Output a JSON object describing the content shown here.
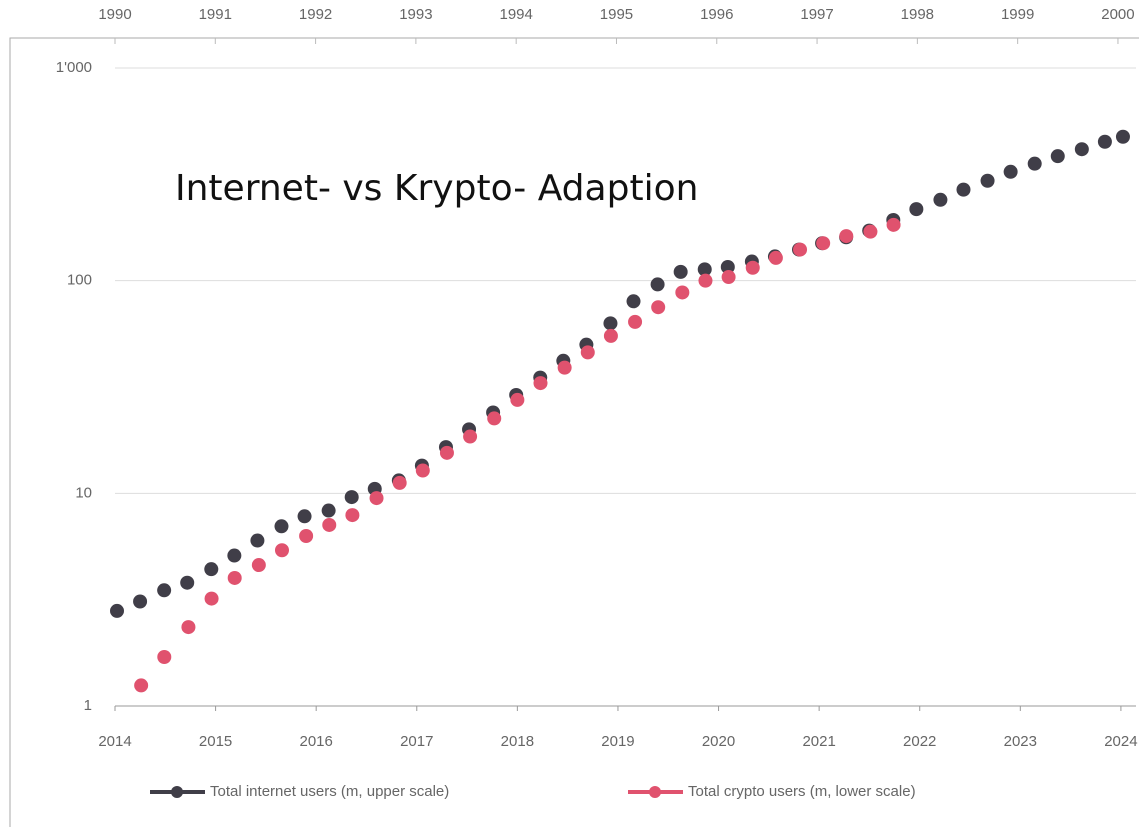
{
  "chart_data": {
    "type": "scatter",
    "title": "Internet- vs Krypto- Adaption",
    "log_y": true,
    "grid": true,
    "legend": "bottom",
    "ylim": [
      1,
      1000
    ],
    "yticks": [
      1,
      10,
      100,
      {
        "value": 1000,
        "label": "1'000"
      }
    ],
    "xlim": [
      2014,
      2024.15
    ],
    "xticks": [
      2014,
      2015,
      2016,
      2017,
      2018,
      2019,
      2020,
      2021,
      2022,
      2023,
      2024
    ],
    "x2lim": [
      1990,
      2000.18
    ],
    "x2ticks": [
      1990,
      1991,
      1992,
      1993,
      1994,
      1995,
      1996,
      1997,
      1998,
      1999,
      2000
    ],
    "series": [
      {
        "name": "Total internet users (m, upper scale)",
        "color": "#403e48",
        "axis": "x2",
        "x": [
          1990.02,
          1990.25,
          1990.49,
          1990.72,
          1990.96,
          1991.19,
          1991.42,
          1991.66,
          1991.89,
          1992.13,
          1992.36,
          1992.59,
          1992.83,
          1993.06,
          1993.3,
          1993.53,
          1993.77,
          1994.0,
          1994.24,
          1994.47,
          1994.7,
          1994.94,
          1995.17,
          1995.41,
          1995.64,
          1995.88,
          1996.11,
          1996.35,
          1996.58,
          1996.82,
          1997.05,
          1997.29,
          1997.52,
          1997.76,
          1997.99,
          1998.23,
          1998.46,
          1998.7,
          1998.93,
          1999.17,
          1999.4,
          1999.64,
          1999.87,
          2000.05
        ],
        "values": [
          2.8,
          3.1,
          3.5,
          3.8,
          4.4,
          5.1,
          6.0,
          7.0,
          7.8,
          8.3,
          9.6,
          10.5,
          11.5,
          13.5,
          16.5,
          20,
          24,
          29,
          35,
          42,
          50,
          63,
          80,
          96,
          110,
          113,
          116,
          123,
          130,
          140,
          150,
          160,
          172,
          193,
          217,
          240,
          268,
          295,
          325,
          355,
          385,
          415,
          450,
          475
        ]
      },
      {
        "name": "Total crypto users (m, lower scale)",
        "color": "#e0526e",
        "x": [
          2014.26,
          2014.49,
          2014.73,
          2014.96,
          2015.19,
          2015.43,
          2015.66,
          2015.9,
          2016.13,
          2016.36,
          2016.6,
          2016.83,
          2017.06,
          2017.3,
          2017.53,
          2017.77,
          2018.0,
          2018.23,
          2018.47,
          2018.7,
          2018.93,
          2019.17,
          2019.4,
          2019.64,
          2019.87,
          2020.1,
          2020.34,
          2020.57,
          2020.81,
          2021.04,
          2021.27,
          2021.51,
          2021.74
        ],
        "values": [
          1.25,
          1.7,
          2.35,
          3.2,
          4.0,
          4.6,
          5.4,
          6.3,
          7.1,
          7.9,
          9.5,
          11.2,
          12.8,
          15.5,
          18.5,
          22.5,
          27.5,
          33,
          39,
          46,
          55,
          64,
          75,
          88,
          100,
          104,
          115,
          128,
          140,
          150,
          162,
          170,
          183
        ]
      }
    ]
  }
}
